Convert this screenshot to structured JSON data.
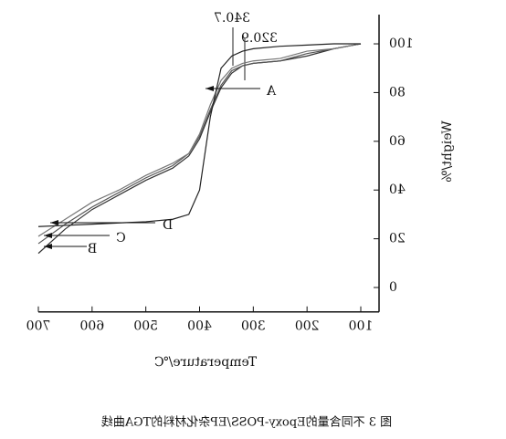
{
  "chart_data": {
    "type": "line",
    "caption": "图 3  不同含量的Epoxy-POSS/EP杂化材料的TGA曲线",
    "x_label": "Temperature/℃",
    "y_label": "Weight/%",
    "x": [
      100,
      150,
      200,
      250,
      300,
      320,
      340,
      360,
      380,
      400,
      420,
      450,
      500,
      550,
      600,
      650,
      700
    ],
    "series": [
      {
        "name": "A",
        "color": "#333333",
        "values": [
          100,
          98,
          95,
          93,
          92,
          91,
          88,
          82,
          72,
          61,
          54,
          49,
          44,
          38,
          32,
          24,
          14
        ]
      },
      {
        "name": "B",
        "color": "#555555",
        "values": [
          100,
          98,
          96,
          93,
          92,
          91,
          89,
          83,
          73,
          62,
          55,
          50,
          45,
          39,
          33,
          26,
          18
        ]
      },
      {
        "name": "C",
        "color": "#777777",
        "values": [
          100,
          98,
          97,
          94,
          93,
          92,
          90,
          85,
          75,
          63,
          55,
          51,
          46,
          40,
          35,
          28,
          21
        ]
      },
      {
        "name": "D",
        "color": "#222222",
        "values": [
          100,
          100,
          99.5,
          99,
          98,
          97,
          95,
          90,
          70,
          40,
          30,
          28,
          27,
          26.5,
          26,
          25.5,
          25
        ]
      }
    ],
    "annotations": [
      "340.7",
      "320.9"
    ],
    "xlim": [
      66,
      700
    ],
    "xticks": [
      100,
      200,
      300,
      400,
      500,
      600,
      700
    ],
    "ylim": [
      -10,
      112
    ],
    "yticks": [
      0,
      20,
      40,
      60,
      80,
      100
    ],
    "mirrored": true
  }
}
